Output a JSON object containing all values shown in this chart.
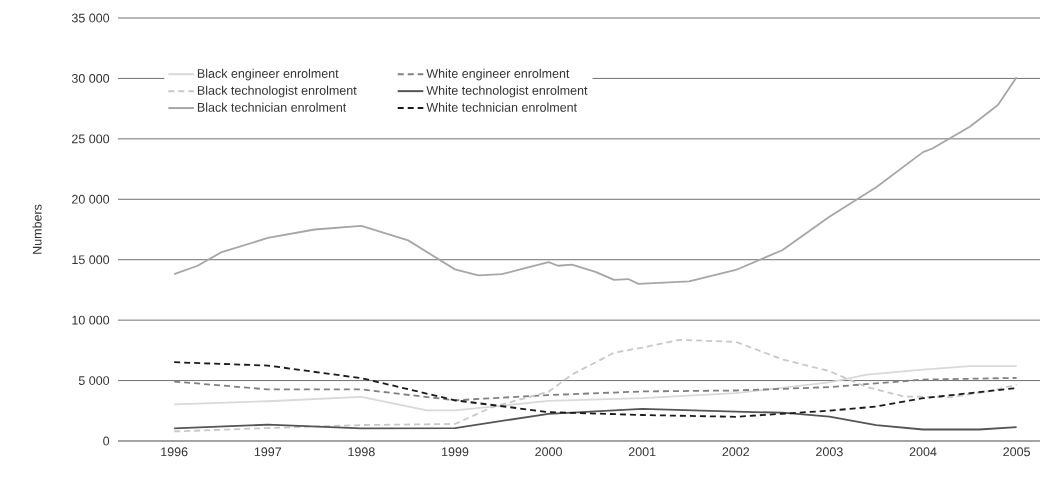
{
  "chart_data": {
    "type": "line",
    "ylabel": "Numbers",
    "xlim": [
      1995.4,
      2005.25
    ],
    "ylim": [
      0,
      35000
    ],
    "xticks": [
      1996,
      1997,
      1998,
      1999,
      2000,
      2001,
      2002,
      2003,
      2004,
      2005
    ],
    "yticks": [
      {
        "value": 0,
        "label": "0"
      },
      {
        "value": 5000,
        "label": "5 000"
      },
      {
        "value": 10000,
        "label": "10 000"
      },
      {
        "value": 15000,
        "label": "15 000"
      },
      {
        "value": 20000,
        "label": "20 000"
      },
      {
        "value": 25000,
        "label": "25 000"
      },
      {
        "value": 30000,
        "label": "30 000"
      },
      {
        "value": 35000,
        "label": "35 000"
      }
    ],
    "grid": "y",
    "legend": "top",
    "marker": "none",
    "series": [
      {
        "name": "Black engineer enrolment",
        "color": "#d9d9d9",
        "line_style": "solid",
        "x": [
          1996,
          1997,
          1998,
          1998.7,
          1999,
          2000,
          2001,
          2002,
          2003,
          2003.4,
          2004,
          2004.5,
          2005
        ],
        "values": [
          3030,
          3290,
          3650,
          2530,
          2530,
          3320,
          3540,
          3960,
          4850,
          5500,
          5900,
          6190,
          6190
        ]
      },
      {
        "name": "White engineer enrolment",
        "color": "#808080",
        "line_style": "dashed",
        "x": [
          1996,
          1997,
          1998,
          1999,
          2000,
          2001,
          2002,
          2003,
          2004,
          2005
        ],
        "values": [
          4920,
          4270,
          4270,
          3370,
          3800,
          4100,
          4180,
          4460,
          5080,
          5220
        ]
      },
      {
        "name": "Black technologist enrolment",
        "color": "#c8c8c8",
        "line_style": "dashed",
        "x": [
          1996,
          1997,
          1998,
          1999,
          1999.4,
          2000,
          2000.25,
          2000.7,
          2001,
          2001.4,
          2002,
          2002.5,
          2003,
          2003.4,
          2003.8,
          2004.3,
          2004.7,
          2005
        ],
        "values": [
          790,
          1070,
          1320,
          1410,
          2810,
          4080,
          5500,
          7310,
          7730,
          8370,
          8200,
          6750,
          5780,
          4460,
          3680,
          3630,
          4100,
          4660
        ]
      },
      {
        "name": "White technologist enrolment",
        "color": "#555555",
        "line_style": "solid",
        "x": [
          1996,
          1997,
          1998,
          1999,
          2000,
          2001,
          2002,
          2002.5,
          2003,
          2003.5,
          2004,
          2004.6,
          2005
        ],
        "values": [
          1040,
          1350,
          1040,
          1070,
          2250,
          2650,
          2430,
          2340,
          2010,
          1310,
          950,
          950,
          1140
        ]
      },
      {
        "name": "Black technician enrolment",
        "color": "#a6a6a6",
        "line_style": "solid",
        "x": [
          1996,
          1996.25,
          1996.5,
          1997,
          1997.5,
          1998,
          1998.25,
          1998.5,
          1999,
          1999.25,
          1999.5,
          1999.75,
          2000,
          2000.1,
          2000.25,
          2000.5,
          2000.7,
          2000.85,
          2000.96,
          2001.5,
          2002,
          2002.5,
          2003,
          2003.5,
          2004,
          2004.1,
          2004.5,
          2004.8,
          2005
        ],
        "values": [
          13800,
          14500,
          15600,
          16800,
          17500,
          17800,
          17200,
          16600,
          14200,
          13700,
          13800,
          14300,
          14800,
          14500,
          14600,
          14000,
          13330,
          13400,
          13000,
          13200,
          14150,
          15800,
          18550,
          21000,
          23900,
          24200,
          26000,
          27800,
          30100
        ]
      },
      {
        "name": "White technician enrolment",
        "color": "#1a1a1a",
        "line_style": "dashed",
        "x": [
          1996,
          1997,
          1998,
          1999,
          2000,
          2001,
          2002,
          2003,
          2003.5,
          2004,
          2005
        ],
        "values": [
          6520,
          6240,
          5200,
          3370,
          2390,
          2150,
          2000,
          2510,
          2850,
          3540,
          4380
        ]
      }
    ]
  }
}
